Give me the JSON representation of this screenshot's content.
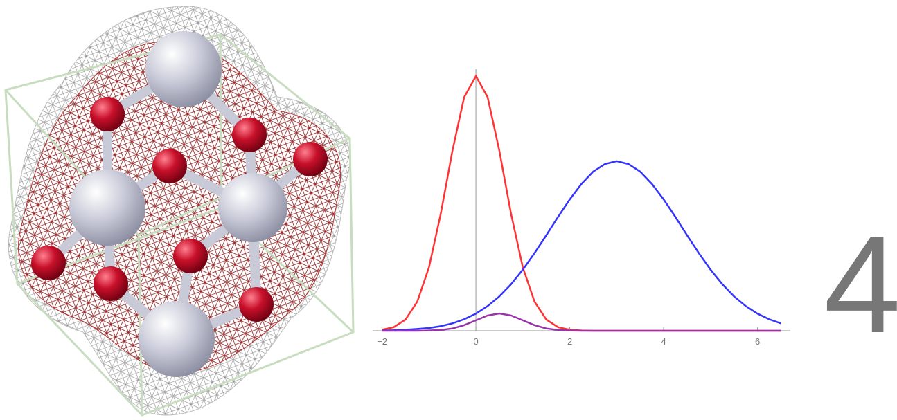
{
  "chart_data": {
    "type": "line",
    "x": [
      -2,
      -1.75,
      -1.5,
      -1.25,
      -1,
      -0.75,
      -0.5,
      -0.25,
      0,
      0.25,
      0.5,
      0.75,
      1,
      1.25,
      1.5,
      1.75,
      2,
      2.25,
      2.5,
      2.75,
      3,
      3.25,
      3.5,
      3.75,
      4,
      4.25,
      4.5,
      4.75,
      5,
      5.25,
      5.5,
      5.75,
      6,
      6.25,
      6.5
    ],
    "series": [
      {
        "color": "#ff3333",
        "values": [
          0.004,
          0.014,
          0.044,
          0.114,
          0.249,
          0.458,
          0.707,
          0.917,
          1,
          0.917,
          0.707,
          0.458,
          0.249,
          0.114,
          0.044,
          0.014,
          0.004,
          0.001,
          0,
          0,
          0,
          0,
          0,
          0,
          0,
          0,
          0,
          0,
          0,
          0,
          0,
          0,
          0,
          0,
          0
        ]
      },
      {
        "color": "#3333ff",
        "values": [
          0.001,
          0.002,
          0.004,
          0.007,
          0.011,
          0.018,
          0.029,
          0.045,
          0.067,
          0.097,
          0.135,
          0.183,
          0.24,
          0.305,
          0.375,
          0.447,
          0.516,
          0.577,
          0.625,
          0.655,
          0.666,
          0.655,
          0.625,
          0.577,
          0.516,
          0.447,
          0.375,
          0.305,
          0.24,
          0.183,
          0.135,
          0.097,
          0.067,
          0.045,
          0.029
        ]
      },
      {
        "color": "#9933aa",
        "values": [
          0,
          0,
          0,
          0,
          0.001,
          0.003,
          0.009,
          0.022,
          0.041,
          0.06,
          0.068,
          0.06,
          0.041,
          0.022,
          0.009,
          0.003,
          0.001,
          0,
          0,
          0,
          0,
          0,
          0,
          0,
          0,
          0,
          0,
          0,
          0,
          0,
          0,
          0,
          0,
          0,
          0
        ]
      }
    ],
    "xlim": [
      -2.2,
      6.7
    ],
    "ylim": [
      0,
      1
    ],
    "xticks": [
      {
        "value": -2,
        "label": "−2"
      },
      0,
      2,
      4,
      6
    ],
    "label": "4"
  }
}
